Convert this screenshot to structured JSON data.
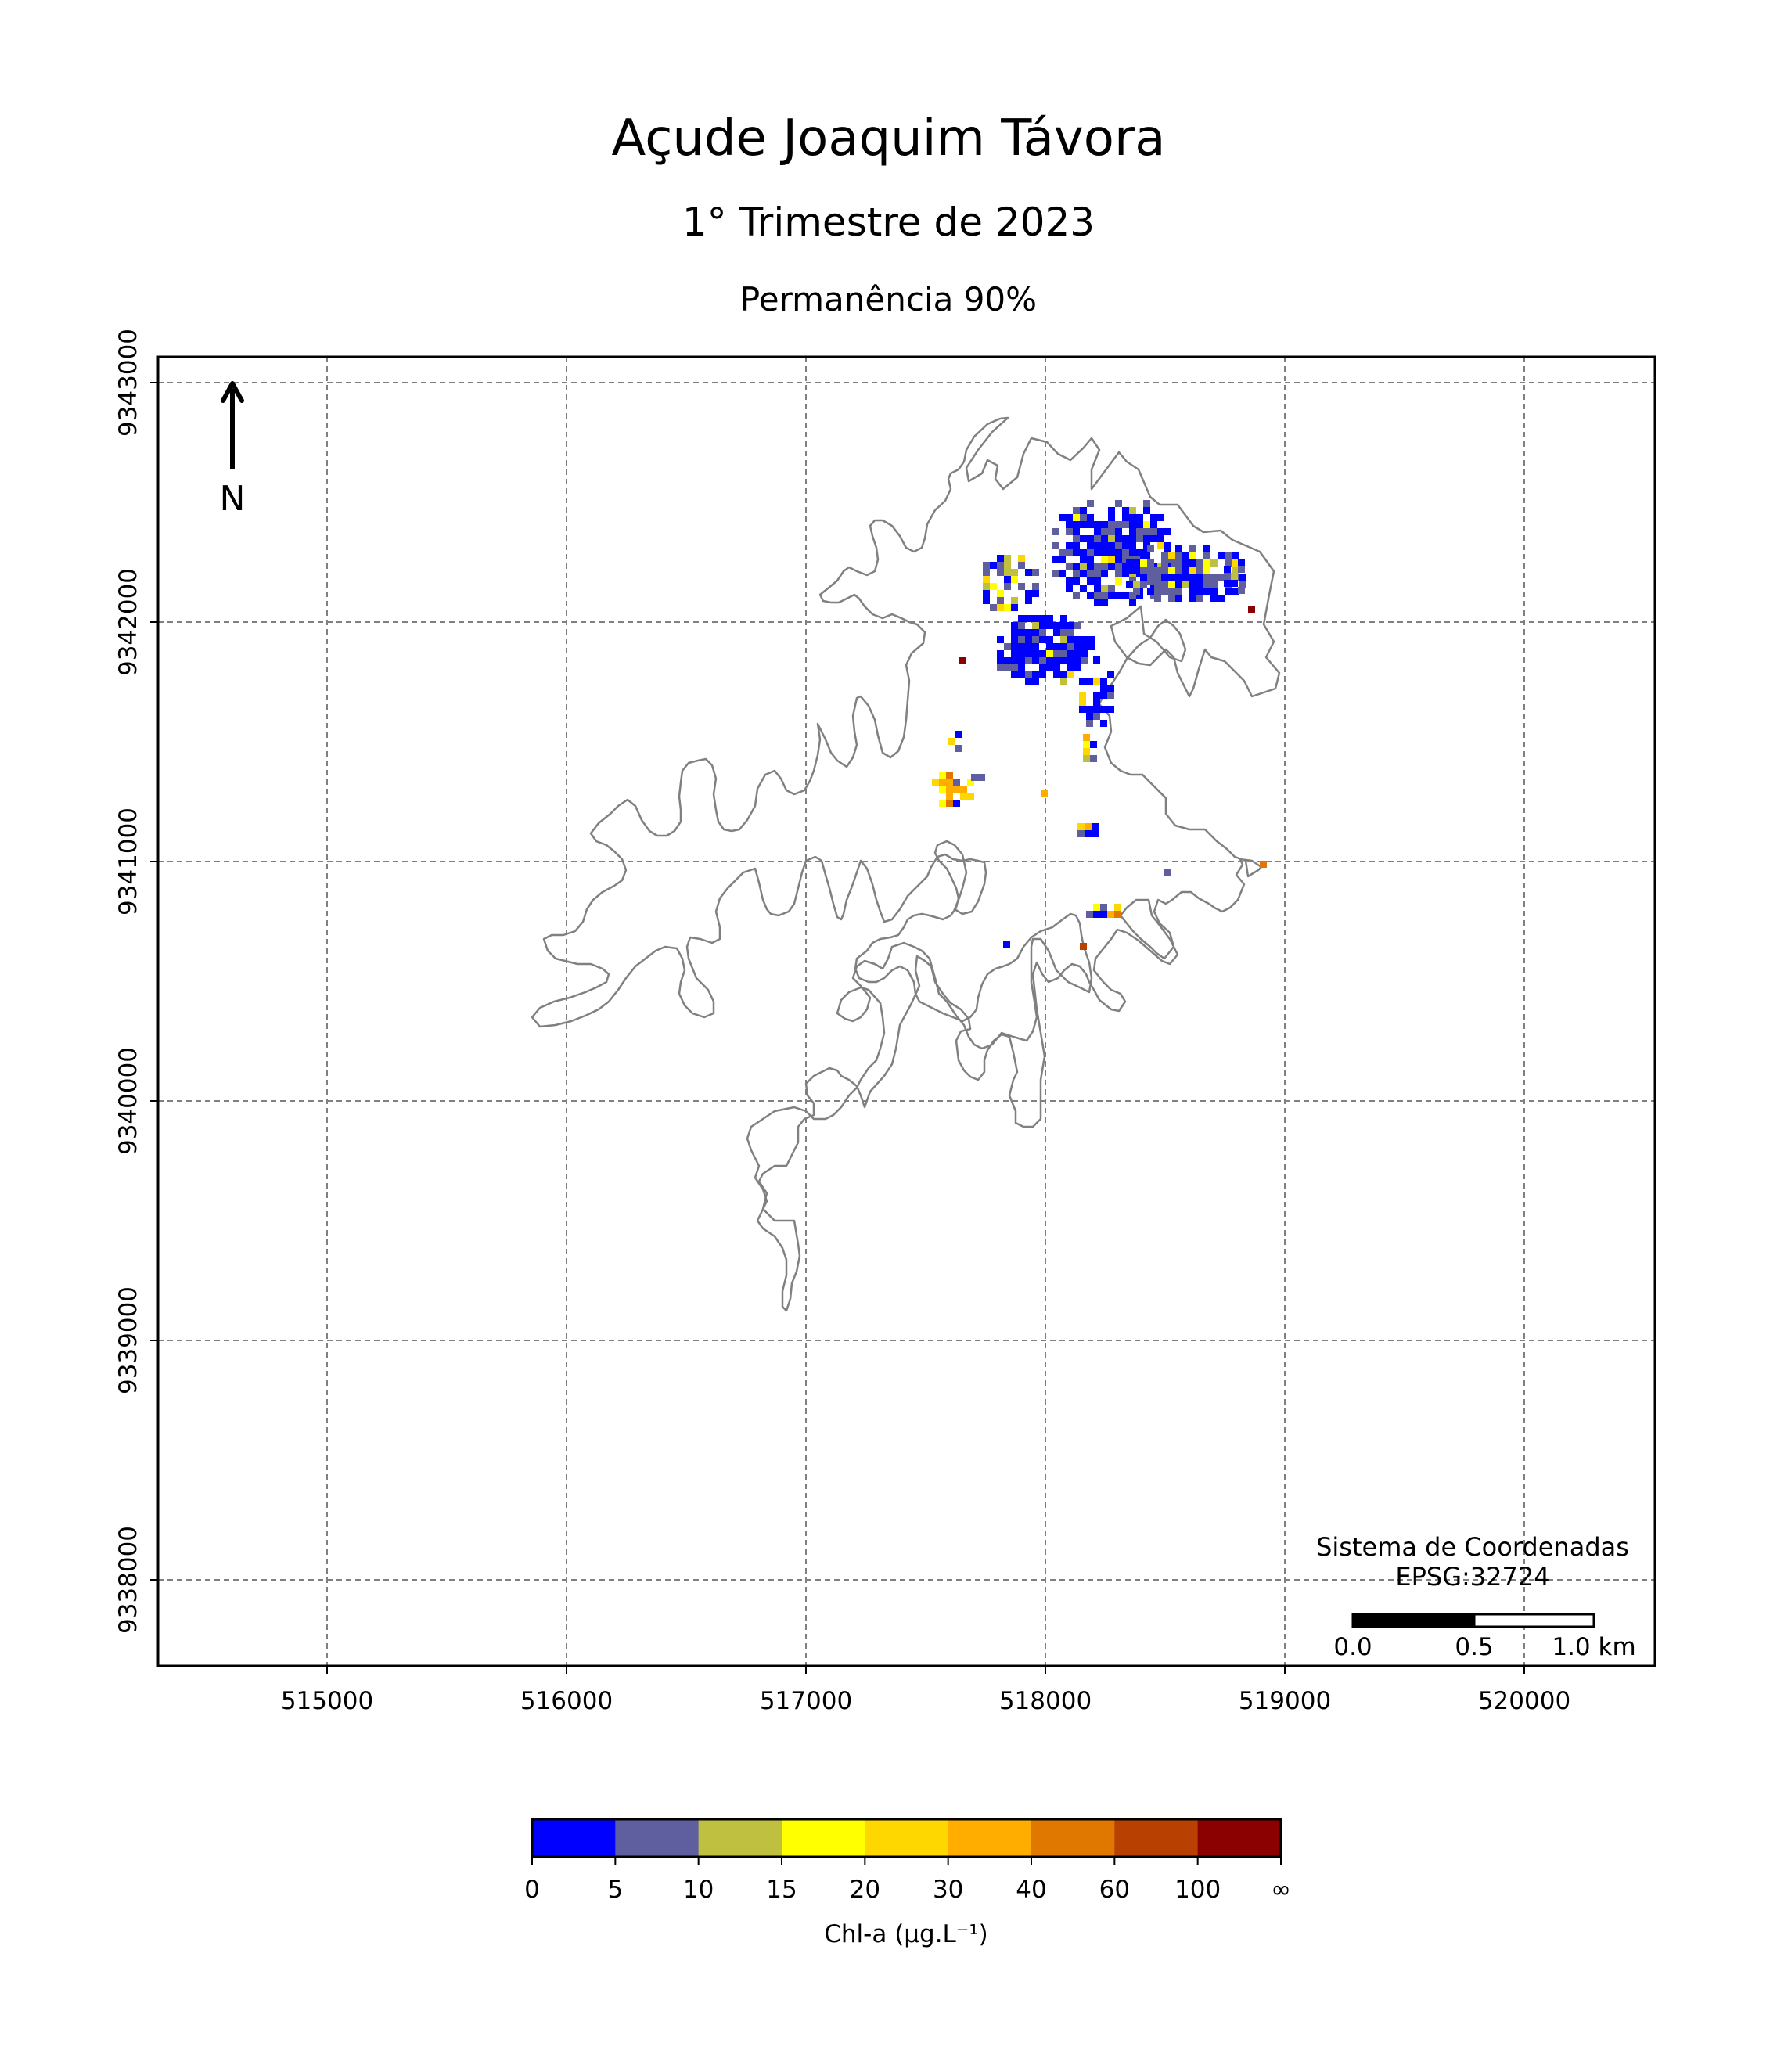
{
  "titles": {
    "main": "Açude Joaquim Távora",
    "period": "1° Trimestre de 2023",
    "metric": "Permanência 90%"
  },
  "map": {
    "x_ticks": [
      "515000",
      "516000",
      "517000",
      "518000",
      "519000",
      "520000"
    ],
    "y_ticks": [
      "9343000",
      "9342000",
      "9341000",
      "9340000",
      "9339000",
      "9338000"
    ],
    "grid": true,
    "north_label": "N",
    "crs_line1": "Sistema de Coordenadas",
    "crs_line2": "EPSG:32724",
    "scale_labels": [
      "0.0",
      "0.5",
      "1.0 km"
    ],
    "outline_color": "#808080"
  },
  "colorbar": {
    "label": "Chl-a (µg.L⁻¹)",
    "ticks": [
      "0",
      "5",
      "10",
      "15",
      "20",
      "30",
      "40",
      "60",
      "100",
      "∞"
    ],
    "colors": [
      "#0000ff",
      "#5f5f9f",
      "#c0c040",
      "#ffff00",
      "#ffd700",
      "#ffae00",
      "#e07800",
      "#b84000",
      "#8b0000"
    ]
  }
}
